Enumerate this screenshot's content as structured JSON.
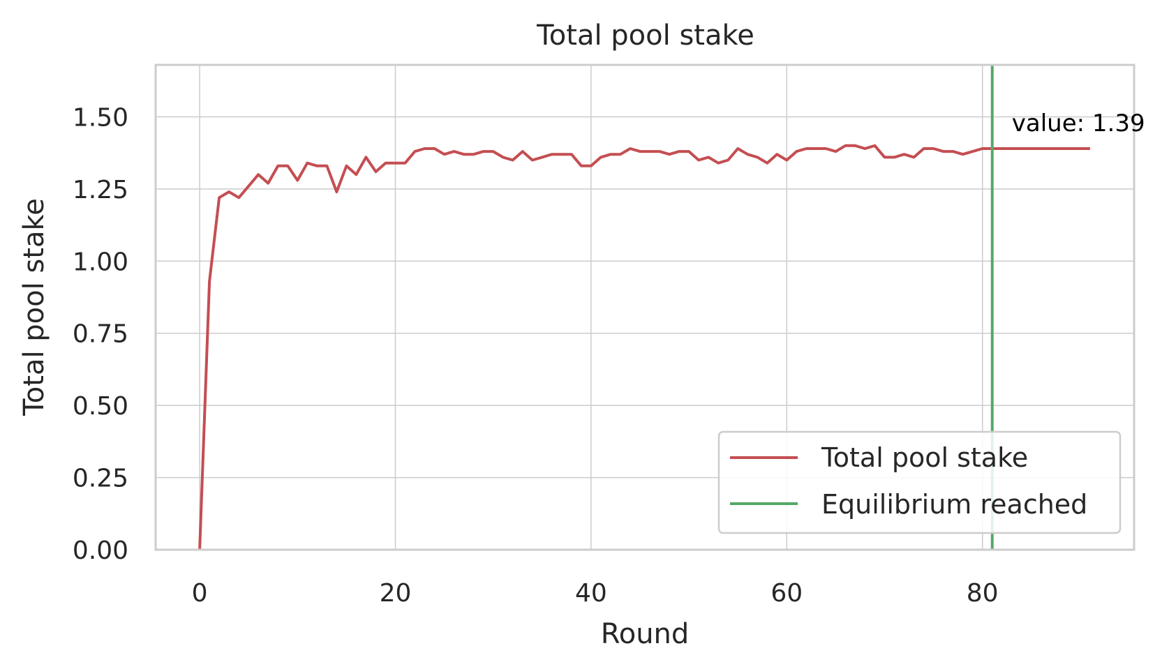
{
  "chart_data": {
    "type": "line",
    "title": "Total pool stake",
    "xlabel": "Round",
    "ylabel": "Total pool stake",
    "xlim": [
      -4.5,
      95.5
    ],
    "ylim": [
      0,
      1.68
    ],
    "xticks": [
      0,
      20,
      40,
      60,
      80
    ],
    "xtick_labels": [
      "0",
      "20",
      "40",
      "60",
      "80"
    ],
    "yticks": [
      0,
      0.25,
      0.5,
      0.75,
      1.0,
      1.25,
      1.5
    ],
    "ytick_labels": [
      "0.00",
      "0.25",
      "0.50",
      "0.75",
      "1.00",
      "1.25",
      "1.50"
    ],
    "grid": true,
    "legend_position": "lower-right",
    "series": [
      {
        "name": "Total pool stake",
        "color": "#c44e52",
        "x": [
          0,
          1,
          2,
          3,
          4,
          5,
          6,
          7,
          8,
          9,
          10,
          11,
          12,
          13,
          14,
          15,
          16,
          17,
          18,
          19,
          20,
          21,
          22,
          23,
          24,
          25,
          26,
          27,
          28,
          29,
          30,
          31,
          32,
          33,
          34,
          35,
          36,
          37,
          38,
          39,
          40,
          41,
          42,
          43,
          44,
          45,
          46,
          47,
          48,
          49,
          50,
          51,
          52,
          53,
          54,
          55,
          56,
          57,
          58,
          59,
          60,
          61,
          62,
          63,
          64,
          65,
          66,
          67,
          68,
          69,
          70,
          71,
          72,
          73,
          74,
          75,
          76,
          77,
          78,
          79,
          80,
          81,
          82,
          83,
          84,
          85,
          86,
          87,
          88,
          89,
          90,
          91
        ],
        "values": [
          0.0,
          0.93,
          1.22,
          1.24,
          1.22,
          1.26,
          1.3,
          1.27,
          1.33,
          1.33,
          1.28,
          1.34,
          1.33,
          1.33,
          1.24,
          1.33,
          1.3,
          1.36,
          1.31,
          1.34,
          1.34,
          1.34,
          1.38,
          1.39,
          1.39,
          1.37,
          1.38,
          1.37,
          1.37,
          1.38,
          1.38,
          1.36,
          1.35,
          1.38,
          1.35,
          1.36,
          1.37,
          1.37,
          1.37,
          1.33,
          1.33,
          1.36,
          1.37,
          1.37,
          1.39,
          1.38,
          1.38,
          1.38,
          1.37,
          1.38,
          1.38,
          1.35,
          1.36,
          1.34,
          1.35,
          1.39,
          1.37,
          1.36,
          1.34,
          1.37,
          1.35,
          1.38,
          1.39,
          1.39,
          1.39,
          1.38,
          1.4,
          1.4,
          1.39,
          1.4,
          1.36,
          1.36,
          1.37,
          1.36,
          1.39,
          1.39,
          1.38,
          1.38,
          1.37,
          1.38,
          1.39,
          1.39,
          1.39,
          1.39,
          1.39,
          1.39,
          1.39,
          1.39,
          1.39,
          1.39,
          1.39,
          1.39
        ]
      }
    ],
    "vlines": [
      {
        "name": "Equilibrium reached",
        "x": 81,
        "color": "#55a868"
      }
    ],
    "annotations": [
      {
        "text": "value: 1.39",
        "x": 83,
        "y": 1.45
      }
    ]
  }
}
